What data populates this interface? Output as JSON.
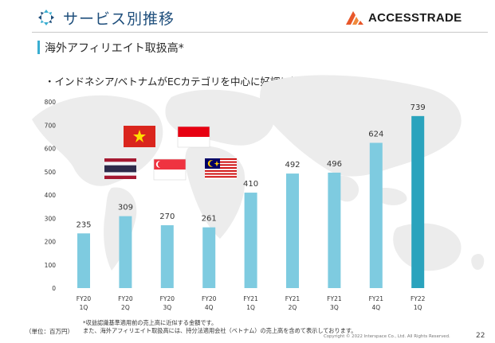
{
  "header": {
    "title": "サービス別推移",
    "brand": "ACCESSTRADE",
    "subtitle": "海外アフィリエイト取扱高*",
    "bullet": "・インドネシア/ベトナムがECカテゴリを中心に好調に推移"
  },
  "footer": {
    "unit": "（単位：百万円）",
    "note1": "*収益認識基準適用前の売上高に近似する金額です。",
    "note2": "また、海外アフィリエイト取扱高には、持分法適用会社（ベトナム）の売上高を含めて表示しております。",
    "copyright": "Copyright ©   2022    Interspace  Co., Ltd. All Rights Reserved.",
    "page": "22"
  },
  "colors": {
    "bar": "#7ecbe0",
    "bar_highlight": "#2aa3bd",
    "accent": "#3aaed1",
    "title": "#1f4f7c",
    "brand_orange": "#e8572a"
  },
  "flags": [
    "vietnam-flag",
    "indonesia-flag",
    "thailand-flag",
    "singapore-flag",
    "malaysia-flag"
  ],
  "chart_data": {
    "type": "bar",
    "title": "海外アフィリエイト取扱高*",
    "ylabel": "",
    "xlabel": "",
    "ylim": [
      0,
      800
    ],
    "yticks": [
      "0",
      "100",
      "200",
      "300",
      "400",
      "500",
      "600",
      "700",
      "800"
    ],
    "categories": [
      [
        "FY20",
        "1Q"
      ],
      [
        "FY20",
        "2Q"
      ],
      [
        "FY20",
        "3Q"
      ],
      [
        "FY20",
        "4Q"
      ],
      [
        "FY21",
        "1Q"
      ],
      [
        "FY21",
        "2Q"
      ],
      [
        "FY21",
        "3Q"
      ],
      [
        "FY21",
        "4Q"
      ],
      [
        "FY22",
        "1Q"
      ]
    ],
    "values": [
      235,
      309,
      270,
      261,
      410,
      492,
      496,
      624,
      739
    ],
    "value_labels": [
      "235",
      "309",
      "270",
      "261",
      "410",
      "492",
      "496",
      "624",
      "739"
    ],
    "highlight_index": 8,
    "grid": false
  }
}
